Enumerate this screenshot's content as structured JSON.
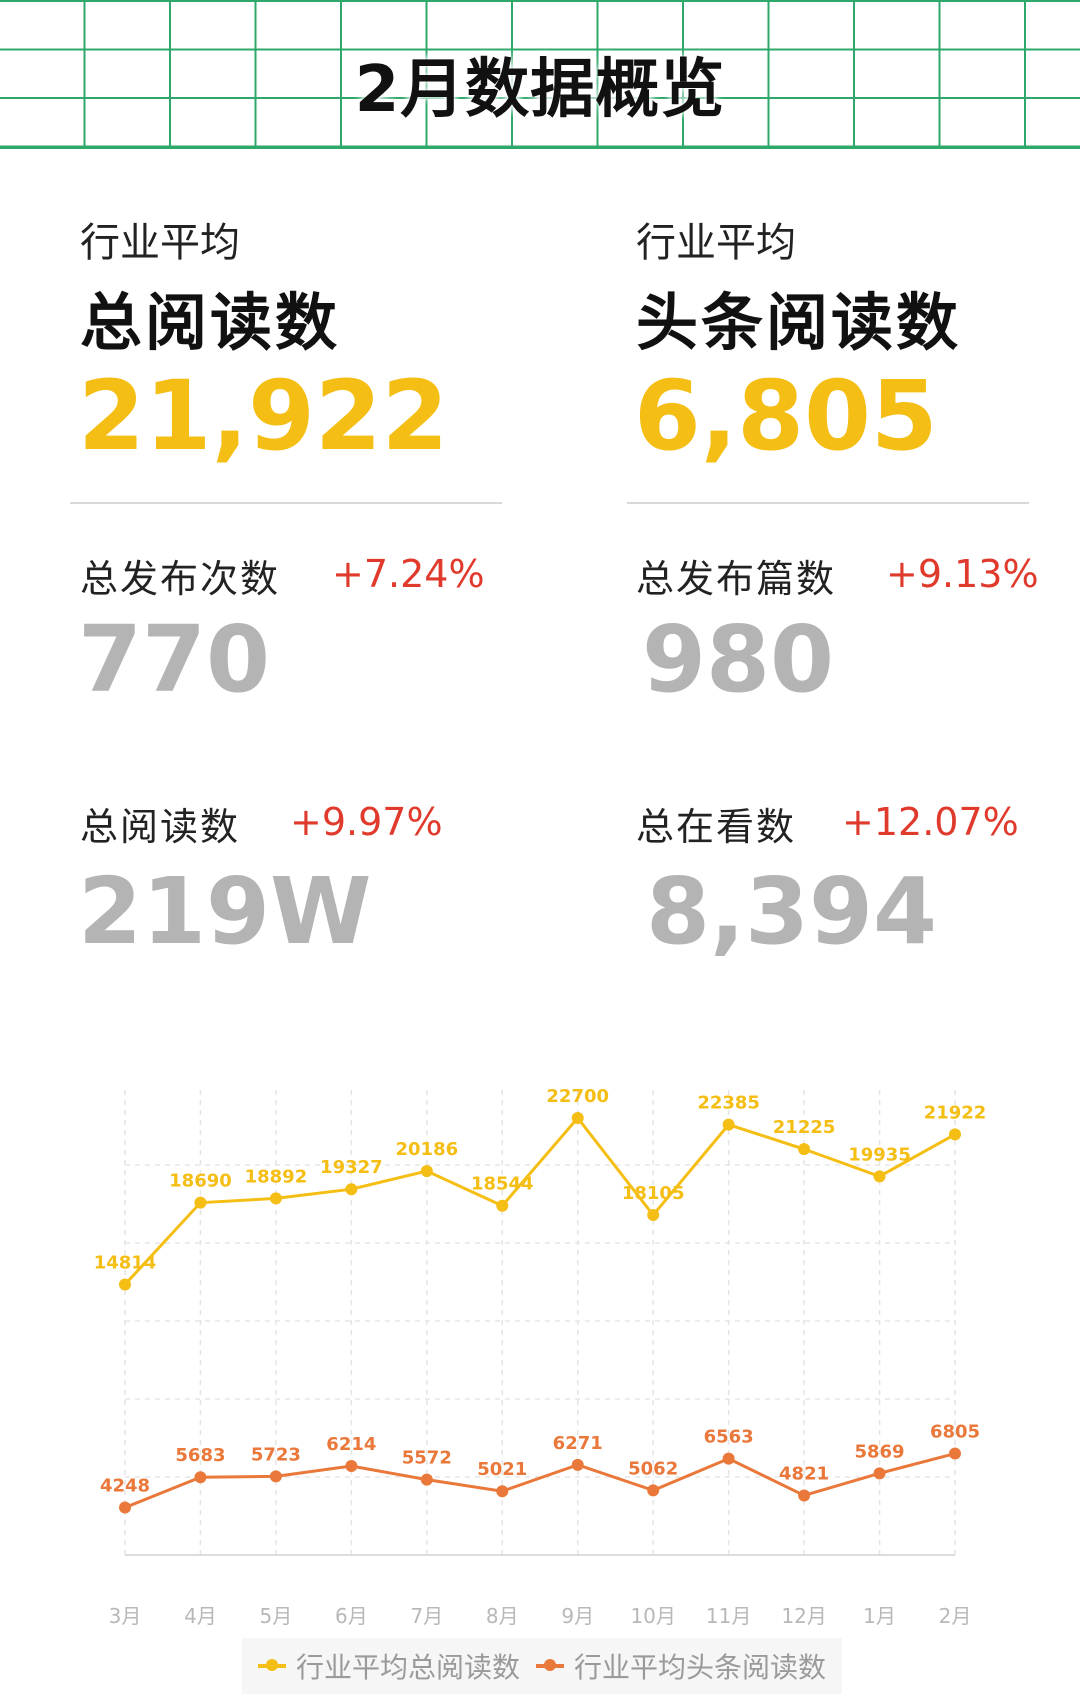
{
  "header": {
    "title": "2月数据概览"
  },
  "cards": {
    "left": {
      "small_label": "行业平均",
      "big_label": "总阅读数",
      "value": "21,922"
    },
    "right": {
      "small_label": "行业平均",
      "big_label": "头条阅读数",
      "value": "6,805"
    }
  },
  "stats": [
    {
      "label": "总发布次数",
      "delta": "+7.24%",
      "value": "770"
    },
    {
      "label": "总发布篇数",
      "delta": "+9.13%",
      "value": "980"
    },
    {
      "label": "总阅读数",
      "delta": "+9.97%",
      "value": "219W"
    },
    {
      "label": "总在看数",
      "delta": "+12.07%",
      "value": "8,394"
    }
  ],
  "colors": {
    "accent_yellow": "#f5be14",
    "accent_orange": "#e9783a",
    "delta_red": "#e03a2c",
    "grid_green": "#2ea86a"
  },
  "chart_data": {
    "type": "line",
    "categories": [
      "3月",
      "4月",
      "5月",
      "6月",
      "7月",
      "8月",
      "9月",
      "10月",
      "11月",
      "12月",
      "1月",
      "2月"
    ],
    "series": [
      {
        "name": "行业平均总阅读数",
        "color": "#f5be14",
        "values": [
          14814,
          18690,
          18892,
          19327,
          20186,
          18544,
          22700,
          18105,
          22385,
          21225,
          19935,
          21922
        ]
      },
      {
        "name": "行业平均头条阅读数",
        "color": "#e9783a",
        "values": [
          4248,
          5683,
          5723,
          6214,
          5572,
          5021,
          6271,
          5062,
          6563,
          4821,
          5869,
          6805
        ]
      }
    ],
    "grid": true,
    "legend_position": "bottom-center"
  }
}
